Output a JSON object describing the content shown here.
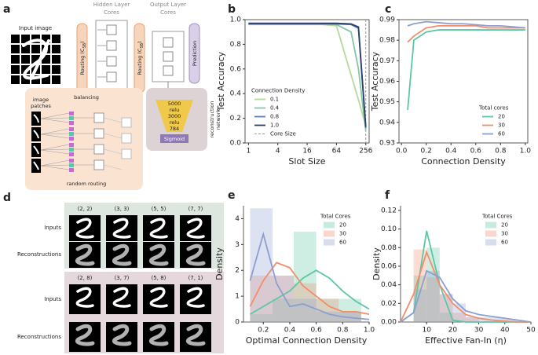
{
  "diagram": {
    "panel": "a",
    "input_label": "Input image",
    "hidden_title": [
      "Hidden Layer",
      "Cores"
    ],
    "output_title": [
      "Output Layer",
      "Cores"
    ],
    "routing": [
      {
        "text": "Routing (C",
        "sub": "SB",
        "close": ")"
      },
      {
        "text": "Routing (C",
        "sub": "SB",
        "close": ")"
      }
    ],
    "prediction": "Prediction",
    "patches": [
      "image",
      "patches"
    ],
    "balancing": "balancing",
    "random_routing": "random routing",
    "decoder": [
      "5000",
      "relu",
      "3000",
      "relu",
      "784"
    ],
    "sigmoid": "Sigmoid",
    "reconstruction": [
      "reconstruction",
      "network"
    ]
  },
  "examples": {
    "panel": "d",
    "groups": [
      {
        "pairs": [
          "(2, 2)",
          "(3, 3)",
          "(5, 5)",
          "(7, 7)"
        ],
        "rows": [
          "Inputs",
          "Reconstructions"
        ]
      },
      {
        "pairs": [
          "(2, 8)",
          "(3, 7)",
          "(5, 8)",
          "(7, 1)"
        ],
        "rows": [
          "Inputs",
          "Reconstructions"
        ]
      }
    ]
  },
  "chart_data": [
    {
      "panel": "b",
      "type": "line",
      "xlabel": "Slot Size",
      "ylabel": "Test Accuracy",
      "log_x": true,
      "spines": "box",
      "x": [
        1,
        2,
        4,
        8,
        16,
        32,
        64,
        128,
        181,
        256
      ],
      "xlim": [
        0.85,
        300
      ],
      "xticks": [
        1,
        4,
        16,
        64,
        256
      ],
      "ylim": [
        0,
        1
      ],
      "yticks": [
        {
          "value": 0,
          "label": "0.0"
        },
        0.2,
        0.4,
        0.6,
        0.8,
        {
          "value": 1,
          "label": "1.0"
        }
      ],
      "legend": "lower left",
      "legend_title": "Connection Density",
      "series": [
        {
          "name": "0.1",
          "color": "#b5da9a",
          "values": [
            0.96,
            0.96,
            0.96,
            0.96,
            0.96,
            0.96,
            0.95,
            0.55,
            0.35,
            0.14
          ]
        },
        {
          "name": "0.4",
          "color": "#82c6a6",
          "values": [
            0.965,
            0.965,
            0.965,
            0.965,
            0.965,
            0.965,
            0.96,
            0.9,
            0.6,
            0.1
          ]
        },
        {
          "name": "0.8",
          "color": "#5a82b0",
          "values": [
            0.965,
            0.965,
            0.965,
            0.965,
            0.965,
            0.965,
            0.965,
            0.96,
            0.93,
            0.12
          ]
        },
        {
          "name": "1.0",
          "color": "#2c3d6b",
          "values": [
            0.97,
            0.97,
            0.97,
            0.97,
            0.97,
            0.97,
            0.97,
            0.965,
            0.94,
            0.13
          ]
        }
      ],
      "vline": {
        "name": "Core Size",
        "x": 256,
        "color": "#999999"
      }
    },
    {
      "panel": "c",
      "type": "line",
      "xlabel": "Connection Density",
      "ylabel": "Test Accuracy",
      "spines": "box",
      "x": [
        0.05,
        0.1,
        0.2,
        0.3,
        0.4,
        0.5,
        0.6,
        0.7,
        0.8,
        0.9,
        1.0
      ],
      "xlim": [
        -0.02,
        1.02
      ],
      "xticks": [
        {
          "value": 0,
          "label": "0.0"
        },
        0.2,
        0.4,
        0.6,
        0.8,
        {
          "value": 1,
          "label": "1.0"
        }
      ],
      "ylim": [
        0.93,
        0.99
      ],
      "yticks": [
        0.93,
        0.94,
        0.95,
        0.96,
        0.97,
        0.98,
        0.99
      ],
      "legend": "lower right",
      "legend_title": "Total cores",
      "series": [
        {
          "name": "20",
          "color": "#5cc7a3",
          "values": [
            0.946,
            0.98,
            0.984,
            0.985,
            0.985,
            0.985,
            0.985,
            0.985,
            0.985,
            0.985,
            0.985
          ]
        },
        {
          "name": "30",
          "color": "#f28d6c",
          "values": [
            0.979,
            0.982,
            0.986,
            0.987,
            0.987,
            0.987,
            0.987,
            0.986,
            0.986,
            0.986,
            0.986
          ]
        },
        {
          "name": "60",
          "color": "#8c9fd0",
          "values": [
            0.987,
            0.988,
            0.989,
            0.9885,
            0.988,
            0.988,
            0.9875,
            0.987,
            0.987,
            0.9865,
            0.986
          ]
        }
      ]
    },
    {
      "panel": "e",
      "type": "histogram",
      "xlabel": "Optimal Connection Density",
      "ylabel": "Density",
      "spines": "left-bottom",
      "bins": [
        0.1,
        0.27,
        0.43,
        0.6,
        0.77,
        0.94
      ],
      "kde_x": [
        0.1,
        0.2,
        0.3,
        0.4,
        0.5,
        0.6,
        0.7,
        0.8,
        0.9,
        1.0
      ],
      "xlim": [
        0.05,
        1.0
      ],
      "xticks": [
        0.2,
        0.4,
        0.6,
        0.8,
        {
          "value": 1,
          "label": "1.0"
        }
      ],
      "ylim": [
        0,
        4.5
      ],
      "yticks": [
        0,
        1,
        2,
        3,
        4
      ],
      "legend": "upper right",
      "legend_title": "Total Cores",
      "series": [
        {
          "name": "20",
          "color": "#5cc7a3",
          "values": [
            0.3,
            0.9,
            3.5,
            0.9,
            0.9
          ],
          "kde": [
            0.3,
            0.6,
            0.9,
            1.2,
            1.7,
            2.0,
            1.7,
            1.2,
            0.8,
            0.5
          ]
        },
        {
          "name": "30",
          "color": "#f28d6c",
          "values": [
            1.8,
            1.8,
            1.5,
            0.9,
            0.4
          ],
          "kde": [
            0.6,
            1.6,
            2.3,
            2.1,
            1.4,
            1.0,
            0.6,
            0.4,
            0.4,
            0.3
          ]
        },
        {
          "name": "60",
          "color": "#8c9fd0",
          "values": [
            4.4,
            1.8,
            0.9,
            0.4,
            0.4
          ],
          "kde": [
            1.6,
            3.4,
            1.5,
            0.6,
            0.7,
            0.5,
            0.3,
            0.2,
            0.15,
            0.1
          ]
        }
      ]
    },
    {
      "panel": "f",
      "type": "histogram",
      "xlabel": "Effective Fan-In (η)",
      "ylabel": "Density",
      "spines": "left-bottom",
      "bins": [
        5,
        10,
        15,
        20,
        25,
        30,
        35,
        40,
        45
      ],
      "kde_x": [
        0,
        5,
        10,
        15,
        20,
        25,
        30,
        35,
        40,
        45,
        50
      ],
      "xlim": [
        0,
        50
      ],
      "xticks": [
        10,
        20,
        30,
        40,
        50
      ],
      "ylim": [
        0,
        0.125
      ],
      "yticks": [
        {
          "value": 0,
          "label": "0.00"
        },
        0.02,
        0.04,
        0.06,
        0.08,
        {
          "value": 0.1,
          "label": "0.10"
        },
        0.12
      ],
      "legend": "upper right",
      "legend_title": "Total Cores",
      "series": [
        {
          "name": "20",
          "color": "#5cc7a3",
          "values": [
            0.05,
            0.08,
            0.01,
            0,
            0,
            0,
            0,
            0
          ],
          "kde": [
            0,
            0.01,
            0.098,
            0.04,
            0.002,
            0,
            0,
            0,
            0,
            0,
            0
          ]
        },
        {
          "name": "30",
          "color": "#f28d6c",
          "values": [
            0.078,
            0.048,
            0.03,
            0.01,
            0.005,
            0,
            0,
            0
          ],
          "kde": [
            0,
            0.03,
            0.075,
            0.04,
            0.02,
            0.008,
            0.004,
            0.002,
            0.001,
            0,
            0
          ]
        },
        {
          "name": "60",
          "color": "#8c9fd0",
          "values": [
            0.035,
            0.055,
            0.03,
            0.02,
            0.005,
            0.005,
            0.005,
            0.003
          ],
          "kde": [
            0,
            0.01,
            0.055,
            0.048,
            0.025,
            0.012,
            0.008,
            0.006,
            0.004,
            0.002,
            0
          ]
        }
      ]
    }
  ]
}
